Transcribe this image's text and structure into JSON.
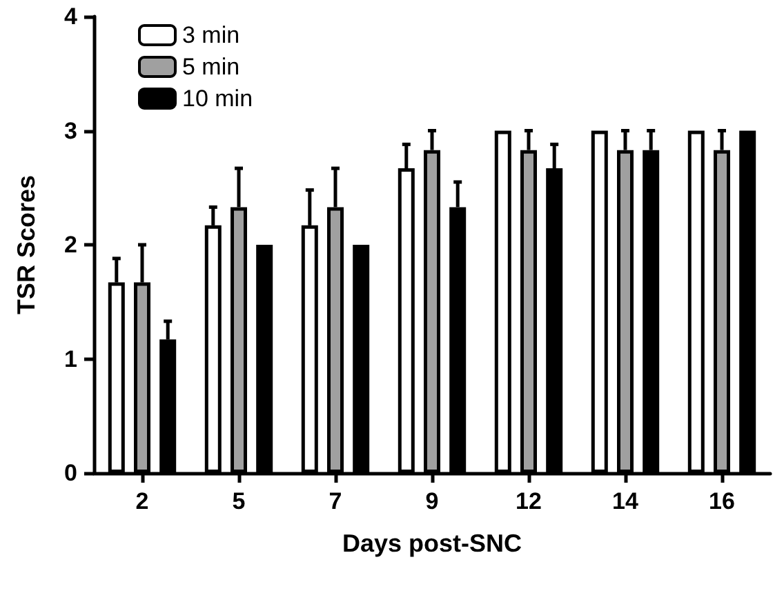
{
  "chart_data": {
    "type": "bar",
    "xlabel": "Days post-SNC",
    "ylabel": "TSR Scores",
    "categories": [
      "2",
      "5",
      "7",
      "9",
      "12",
      "14",
      "16"
    ],
    "series": [
      {
        "name": "3 min",
        "color": "#ffffff",
        "values": [
          1.67,
          2.17,
          2.17,
          2.67,
          3,
          3,
          3
        ],
        "errors": [
          [
            1.67,
            1.88
          ],
          [
            2.17,
            2.33
          ],
          [
            2.17,
            2.48
          ],
          [
            2.67,
            2.88
          ],
          null,
          null,
          null
        ]
      },
      {
        "name": "5 min",
        "color": "#a0a0a0",
        "values": [
          1.67,
          2.33,
          2.33,
          2.83,
          2.83,
          2.83,
          2.83
        ],
        "errors": [
          [
            1.67,
            2.0
          ],
          [
            2.33,
            2.67
          ],
          [
            2.33,
            2.67
          ],
          [
            2.83,
            3.0
          ],
          [
            2.83,
            3.0
          ],
          [
            2.83,
            3.0
          ],
          [
            2.83,
            3.0
          ]
        ]
      },
      {
        "name": "10 min",
        "color": "#000000",
        "values": [
          1.17,
          2,
          2,
          2.33,
          2.67,
          2.83,
          3
        ],
        "errors": [
          [
            1.17,
            1.33
          ],
          null,
          null,
          [
            2.33,
            2.55
          ],
          [
            2.67,
            2.88
          ],
          [
            2.83,
            3.0
          ],
          null
        ]
      }
    ],
    "ylim": [
      0,
      4
    ],
    "yticks": [
      0,
      1,
      2,
      3,
      4
    ],
    "grid": false,
    "legend": "top left"
  }
}
